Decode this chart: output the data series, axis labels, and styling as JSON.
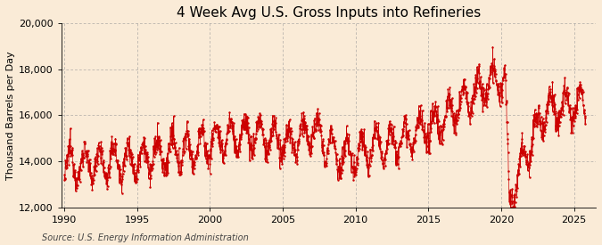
{
  "title": "4 Week Avg U.S. Gross Inputs into Refineries",
  "ylabel": "Thousand Barrels per Day",
  "source": "Source: U.S. Energy Information Administration",
  "ylim": [
    12000,
    20000
  ],
  "xlim": [
    1989.8,
    2026.5
  ],
  "yticks": [
    12000,
    14000,
    16000,
    18000,
    20000
  ],
  "xticks": [
    1990,
    1995,
    2000,
    2005,
    2010,
    2015,
    2020,
    2025
  ],
  "line_color": "#cc0000",
  "background_color": "#faebd7",
  "plot_bg_color": "#faebd7",
  "grid_color": "#999999",
  "title_fontsize": 11,
  "label_fontsize": 8,
  "tick_fontsize": 8,
  "source_fontsize": 7
}
